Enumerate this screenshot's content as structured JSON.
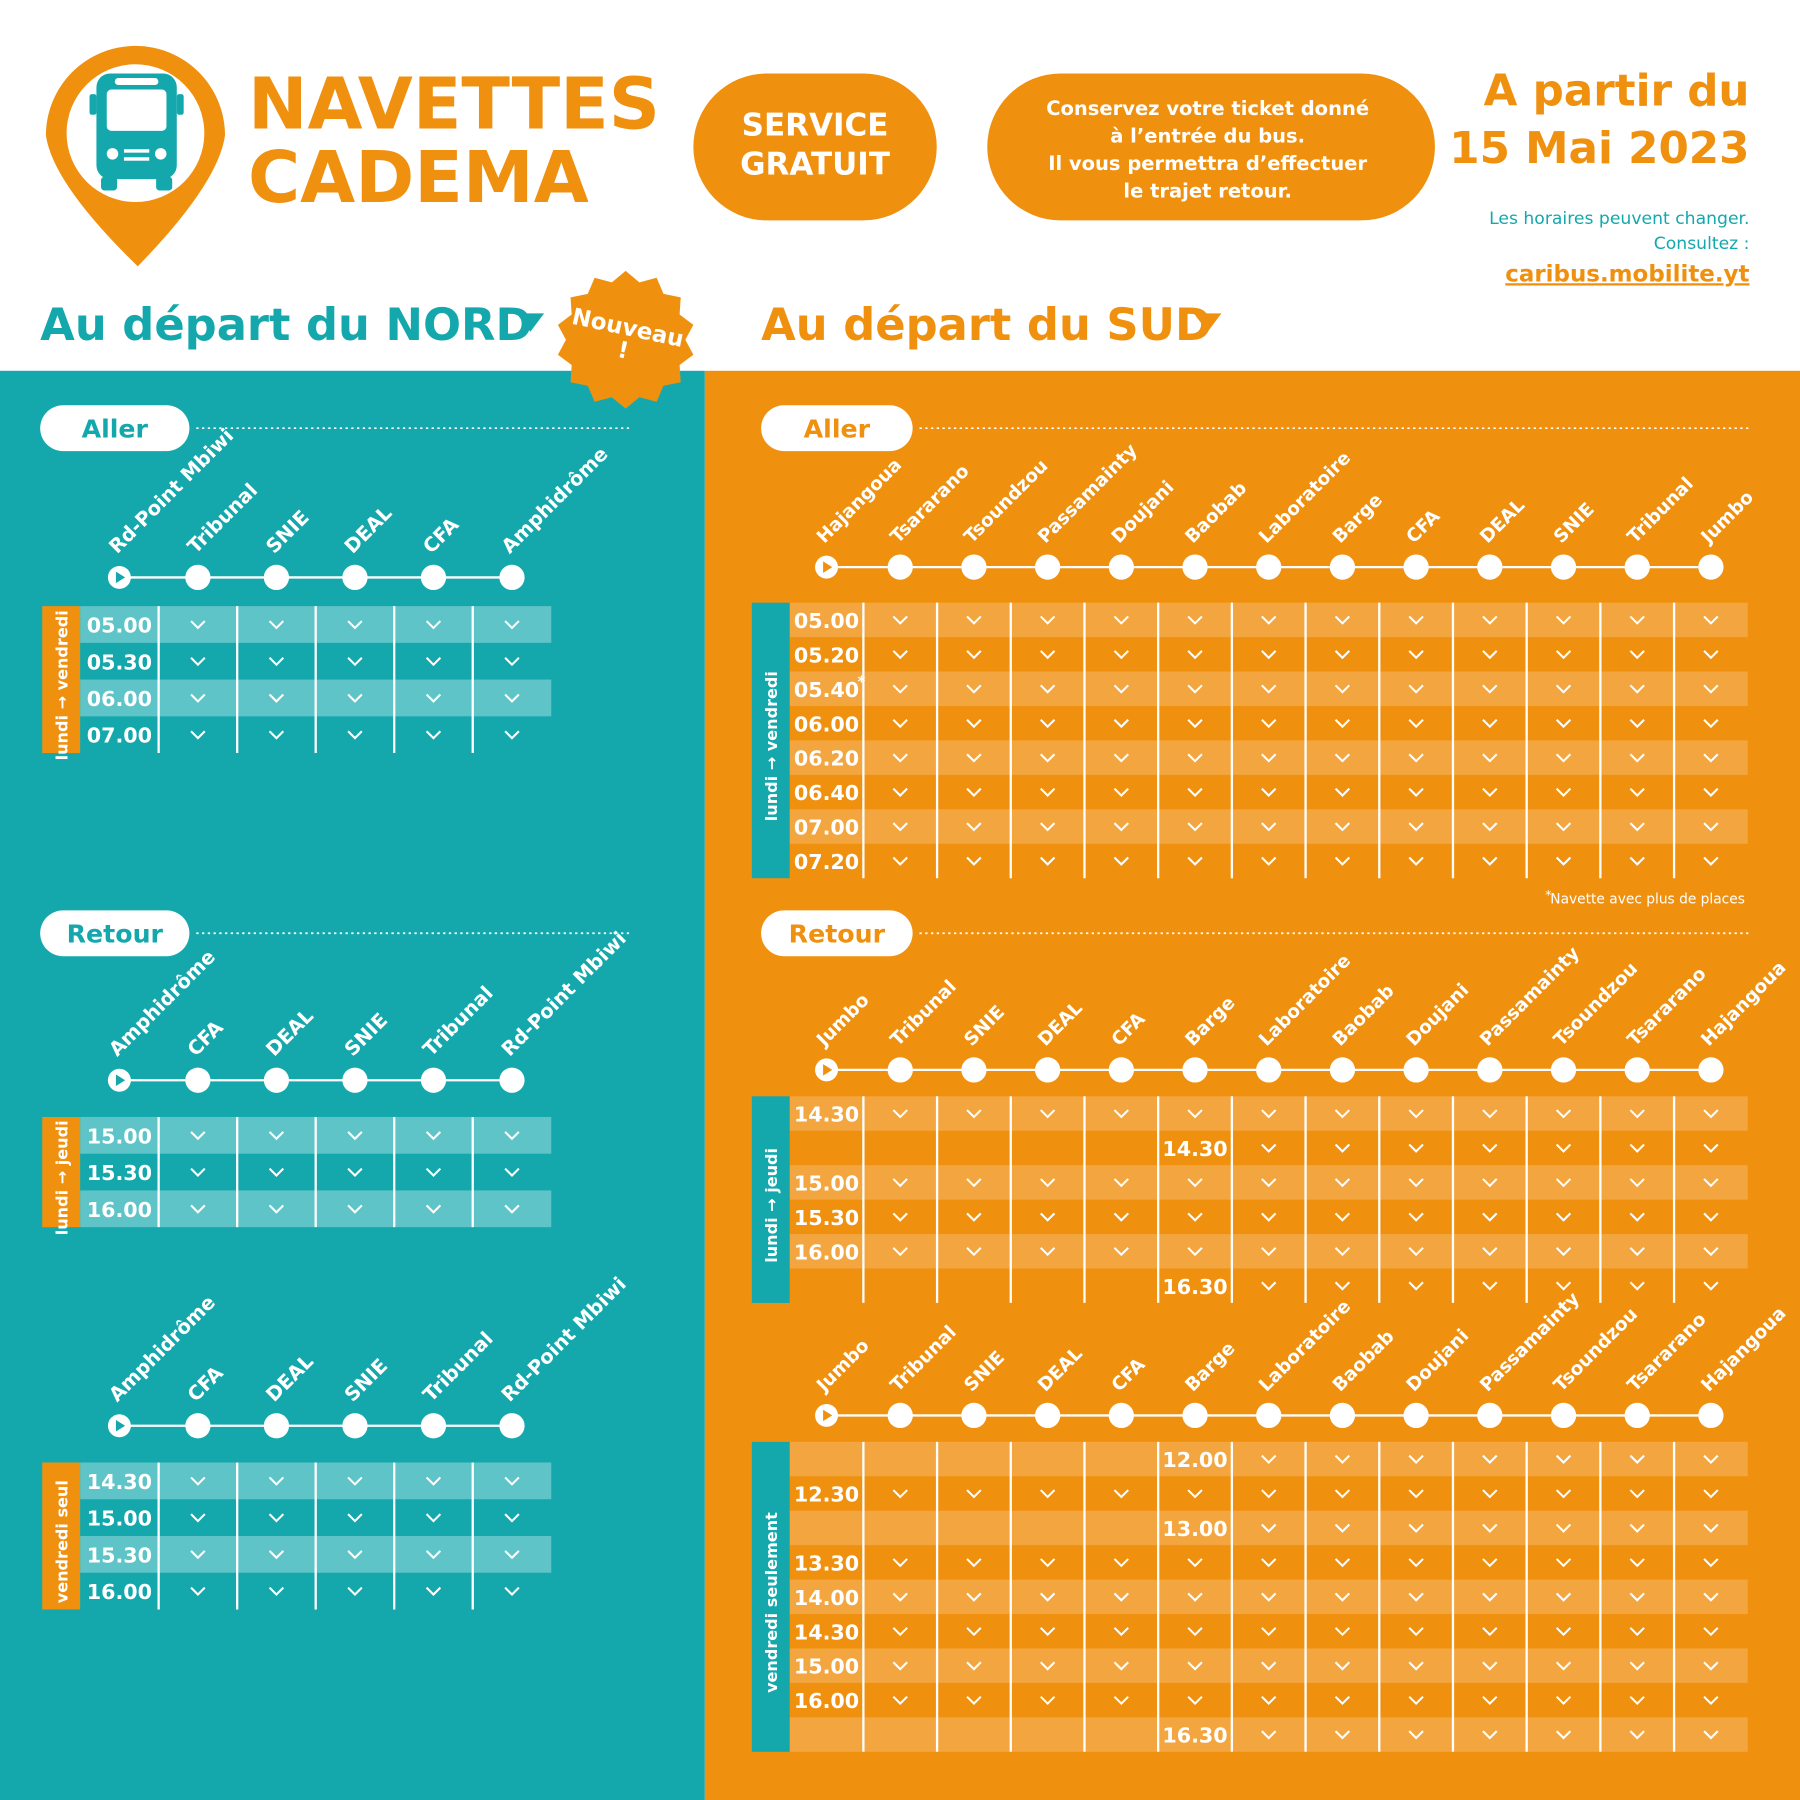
{
  "header": {
    "title": [
      "NAVETTES",
      "CADEMA"
    ],
    "service": [
      "SERVICE",
      "GRATUIT"
    ],
    "ticket_note": [
      "Conservez votre ticket donné",
      "à l’entrée du bus.",
      "Il vous permettra d’effectuer",
      "le trajet retour."
    ],
    "start_date": [
      "A partir du",
      "15 Mai 2023"
    ],
    "notice": [
      "Les horaires peuvent changer.",
      "Consultez :"
    ],
    "link": "caribus.mobilite.yt"
  },
  "nord": {
    "heading": "Au départ du NORD",
    "badge": [
      "Nouveau",
      "!"
    ],
    "aller": {
      "label": "Aller",
      "timetables": [
        {
          "days": "lundi → vendredi",
          "stops": [
            "Rd-Point Mbiwi",
            "Tribunal",
            "SNIE",
            "DEAL",
            "CFA",
            "Amphidrôme"
          ],
          "rows": [
            [
              "05.00"
            ],
            [
              "05.30"
            ],
            [
              "06.00"
            ],
            [
              "07.00"
            ]
          ]
        }
      ]
    },
    "retour": {
      "label": "Retour",
      "timetables": [
        {
          "days": "lundi → jeudi",
          "stops": [
            "Amphidrôme",
            "CFA",
            "DEAL",
            "SNIE",
            "Tribunal",
            "Rd-Point Mbiwi"
          ],
          "rows": [
            [
              "15.00"
            ],
            [
              "15.30"
            ],
            [
              "16.00"
            ]
          ]
        },
        {
          "days": "vendredi seul",
          "stops": [
            "Amphidrôme",
            "CFA",
            "DEAL",
            "SNIE",
            "Tribunal",
            "Rd-Point Mbiwi"
          ],
          "rows": [
            [
              "14.30"
            ],
            [
              "15.00"
            ],
            [
              "15.30"
            ],
            [
              "16.00"
            ]
          ]
        }
      ]
    }
  },
  "sud": {
    "heading": "Au départ du SUD",
    "aller": {
      "label": "Aller",
      "timetables": [
        {
          "days": "lundi → vendredi",
          "stops": [
            "Hajangoua",
            "Tsararano",
            "Tsoundzou",
            "Passamainty",
            "Doujani",
            "Baobab",
            "Laboratoire",
            "Barge",
            "CFA",
            "DEAL",
            "SNIE",
            "Tribunal",
            "Jumbo"
          ],
          "rows": [
            [
              "05.00"
            ],
            [
              "05.20"
            ],
            [
              {
                "time": "05.40",
                "note": "*"
              }
            ],
            [
              "06.00"
            ],
            [
              "06.20"
            ],
            [
              "06.40"
            ],
            [
              "07.00"
            ],
            [
              "07.20"
            ]
          ]
        }
      ]
    },
    "footnote": {
      "mark": "*",
      "text": "Navette avec plus de places"
    },
    "retour": {
      "label": "Retour",
      "timetables": [
        {
          "days": "lundi → jeudi",
          "stops": [
            "Jumbo",
            "Tribunal",
            "SNIE",
            "DEAL",
            "CFA",
            "Barge",
            "Laboratoire",
            "Baobab",
            "Doujani",
            "Passamainty",
            "Tsoundzou",
            "Tsararano",
            "Hajangoua"
          ],
          "rows": [
            [
              "14.30"
            ],
            [
              null,
              null,
              null,
              null,
              null,
              "14.30"
            ],
            [
              "15.00"
            ],
            [
              "15.30"
            ],
            [
              "16.00"
            ],
            [
              null,
              null,
              null,
              null,
              null,
              "16.30"
            ]
          ]
        },
        {
          "days": "vendredi seulement",
          "stops": [
            "Jumbo",
            "Tribunal",
            "SNIE",
            "DEAL",
            "CFA",
            "Barge",
            "Laboratoire",
            "Baobab",
            "Doujani",
            "Passamainty",
            "Tsoundzou",
            "Tsararano",
            "Hajangoua"
          ],
          "rows": [
            [
              null,
              null,
              null,
              null,
              null,
              "12.00"
            ],
            [
              "12.30"
            ],
            [
              null,
              null,
              null,
              null,
              null,
              "13.00"
            ],
            [
              "13.30"
            ],
            [
              "14.00"
            ],
            [
              "14.30"
            ],
            [
              "15.00"
            ],
            [
              "16.00"
            ],
            [
              null,
              null,
              null,
              null,
              null,
              "16.30"
            ]
          ]
        }
      ]
    }
  }
}
